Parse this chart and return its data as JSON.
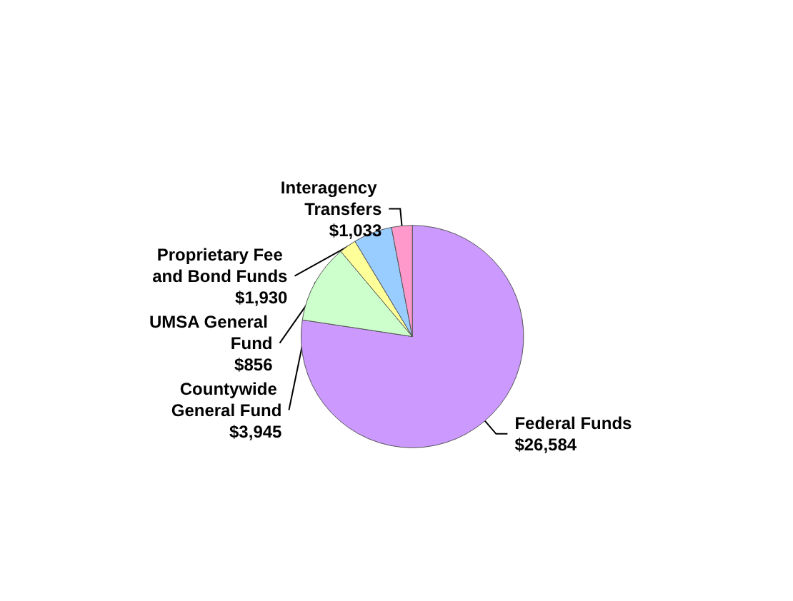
{
  "chart_data": {
    "type": "pie",
    "categories": [
      "Federal Funds",
      "Countywide General Fund",
      "UMSA General Fund",
      "Proprietary Fee and Bond Funds",
      "Interagency Transfers"
    ],
    "values": [
      26584,
      3945,
      856,
      1930,
      1033
    ],
    "value_labels": [
      "$26,584",
      "$3,945",
      "$856",
      "$1,930",
      "$1,033"
    ],
    "colors": [
      "#cc99ff",
      "#ccffcc",
      "#ffff99",
      "#99ccff",
      "#ff99cc"
    ],
    "legend": false
  }
}
